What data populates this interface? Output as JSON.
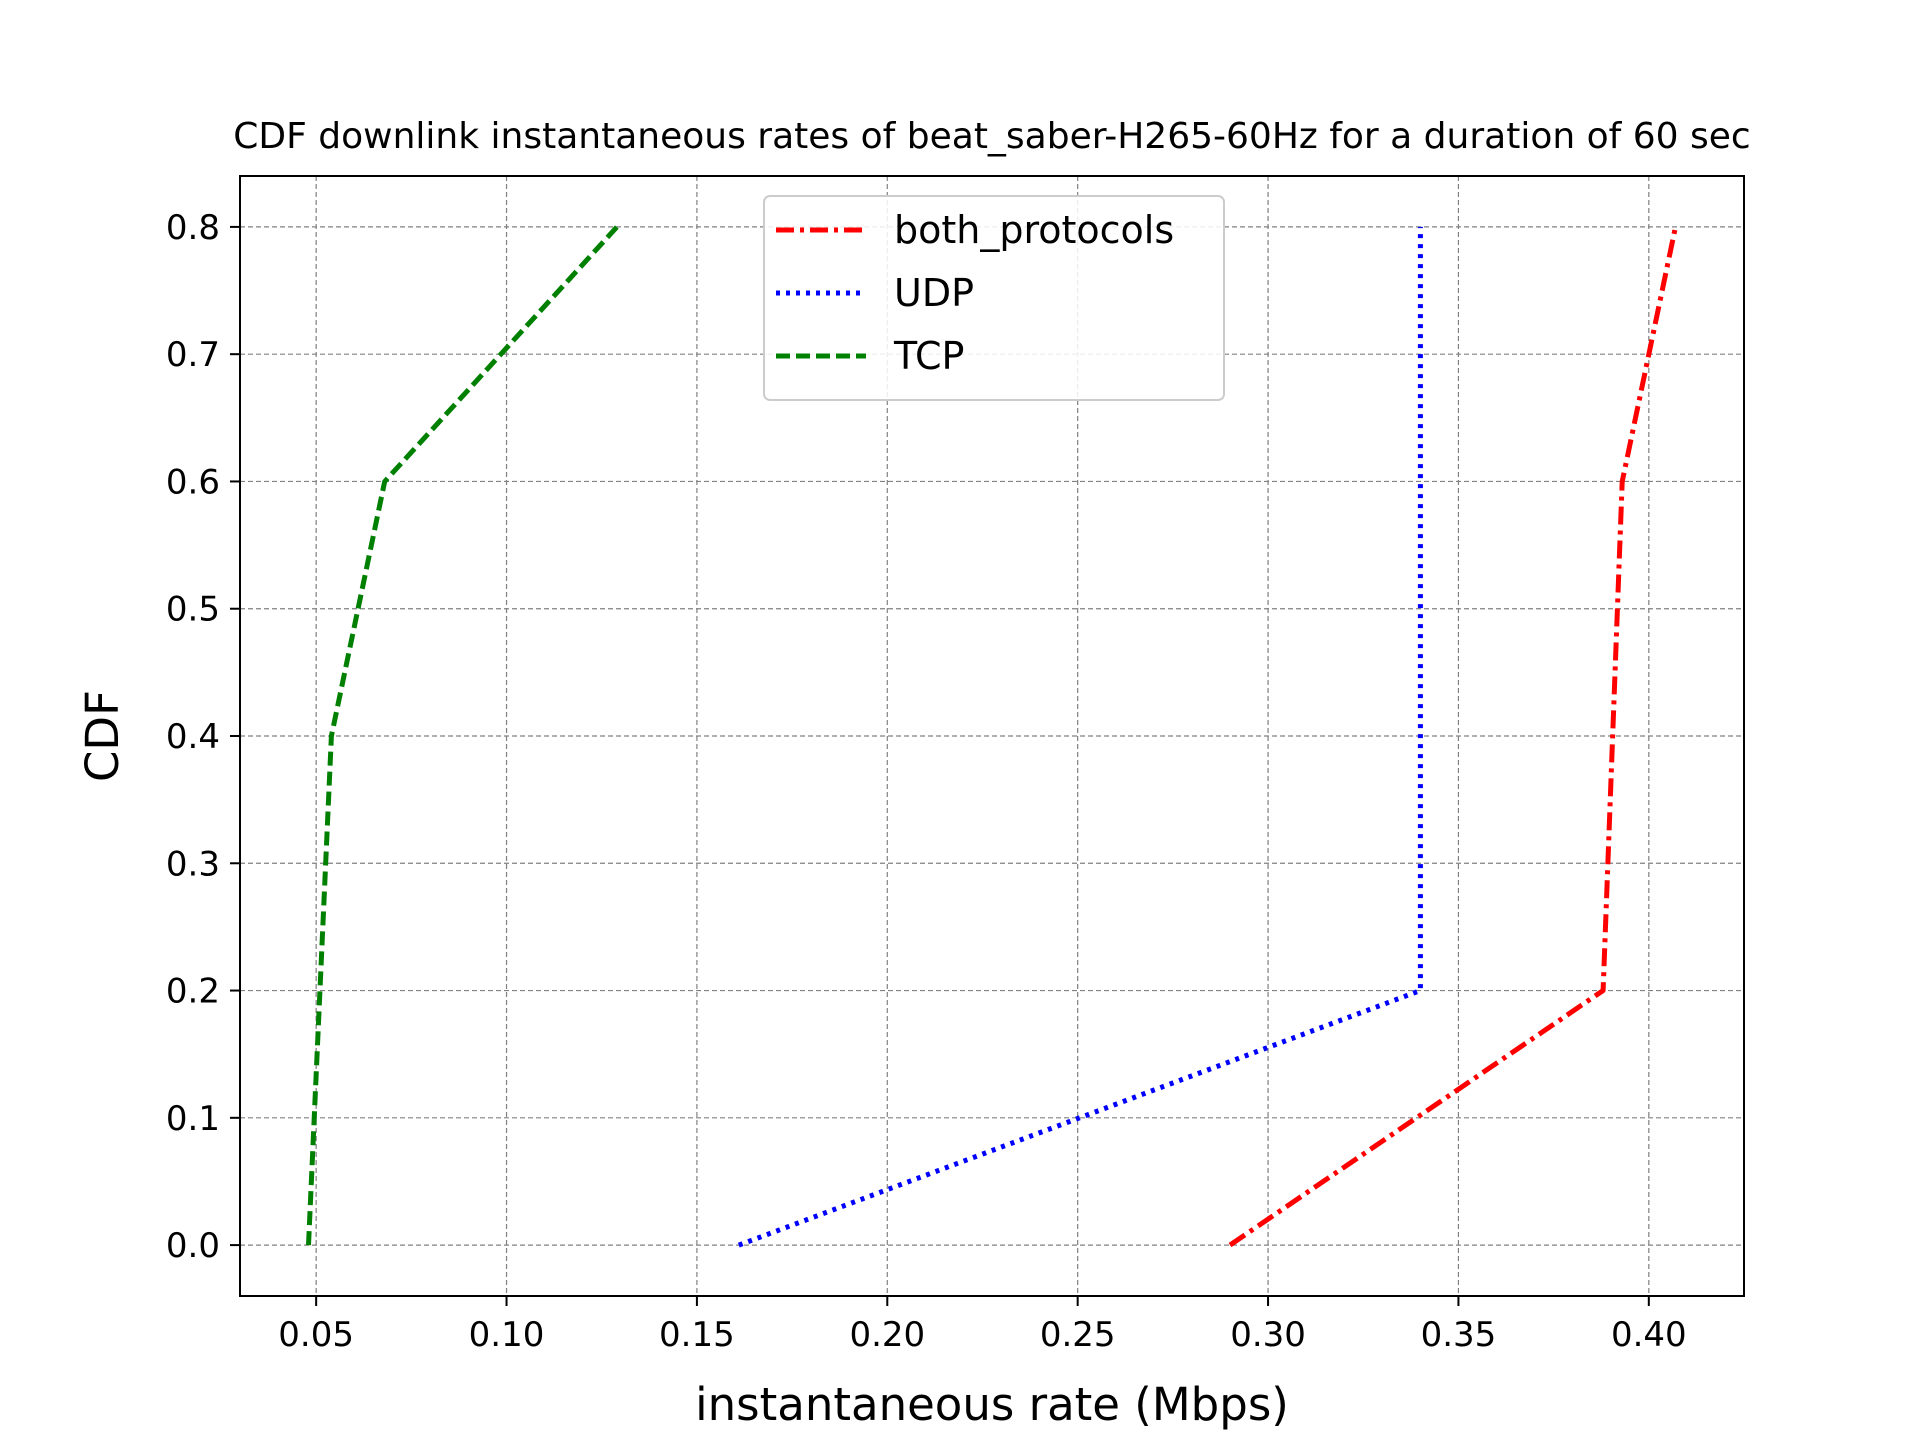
{
  "chart_data": {
    "type": "line",
    "title": "CDF downlink instantaneous rates of beat_saber-H265-60Hz for a duration of 60 sec",
    "xlabel": "instantaneous rate (Mbps)",
    "ylabel": "CDF",
    "xlim": [
      0.03,
      0.425
    ],
    "ylim": [
      -0.04,
      0.84
    ],
    "xticks": [
      0.05,
      0.1,
      0.15,
      0.2,
      0.25,
      0.3,
      0.35,
      0.4
    ],
    "xtick_labels": [
      "0.05",
      "0.10",
      "0.15",
      "0.20",
      "0.25",
      "0.30",
      "0.35",
      "0.40"
    ],
    "yticks": [
      0.0,
      0.1,
      0.2,
      0.3,
      0.4,
      0.5,
      0.6,
      0.7,
      0.8
    ],
    "ytick_labels": [
      "0.0",
      "0.1",
      "0.2",
      "0.3",
      "0.4",
      "0.5",
      "0.6",
      "0.7",
      "0.8"
    ],
    "grid": true,
    "legend_position": "top-center",
    "series": [
      {
        "name": "both_protocols",
        "color": "#ff0000",
        "style": "dashdot",
        "x": [
          0.29,
          0.388,
          0.393,
          0.407
        ],
        "y": [
          0.0,
          0.2,
          0.6,
          0.8
        ]
      },
      {
        "name": "UDP",
        "color": "#0000ff",
        "style": "dotted",
        "x": [
          0.161,
          0.34,
          0.34
        ],
        "y": [
          0.0,
          0.2,
          0.8
        ]
      },
      {
        "name": "TCP",
        "color": "#008000",
        "style": "dashed",
        "x": [
          0.048,
          0.054,
          0.068,
          0.129
        ],
        "y": [
          0.0,
          0.4,
          0.6,
          0.8
        ]
      }
    ]
  }
}
